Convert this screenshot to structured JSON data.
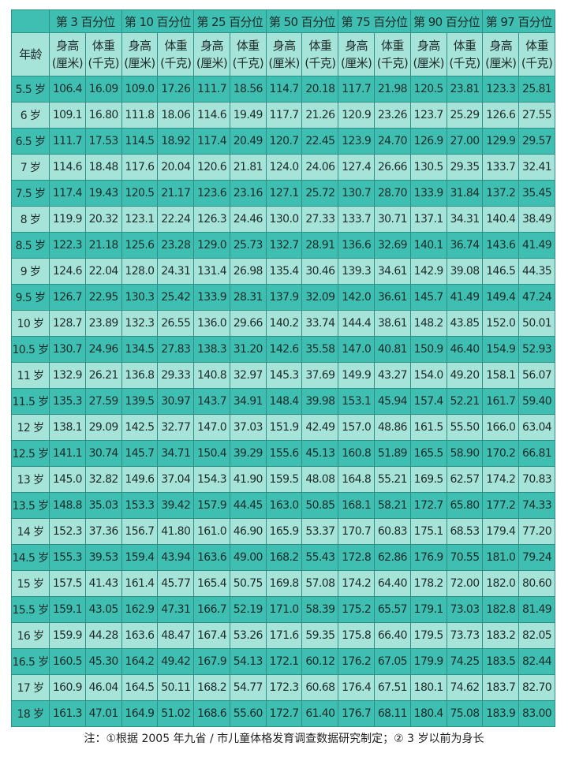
{
  "header": {
    "age_label": "年龄",
    "percentiles": [
      "第 3 百分位",
      "第 10 百分位",
      "第 25 百分位",
      "第 50 百分位",
      "第 75 百分位",
      "第 90 百分位",
      "第 97 百分位"
    ],
    "height_label": "身高\n(厘米)",
    "weight_label": "体重\n(千克)"
  },
  "colors": {
    "dark": "#3fbfb2",
    "light": "#a6e3d9"
  },
  "rows": [
    {
      "age": "5.5 岁",
      "v": [
        "106.4",
        "16.09",
        "109.0",
        "17.26",
        "111.7",
        "18.56",
        "114.7",
        "20.18",
        "117.7",
        "21.98",
        "120.5",
        "23.81",
        "123.3",
        "25.81"
      ]
    },
    {
      "age": "6 岁",
      "v": [
        "109.1",
        "16.80",
        "111.8",
        "18.06",
        "114.6",
        "19.49",
        "117.7",
        "21.26",
        "120.9",
        "23.26",
        "123.7",
        "25.29",
        "126.6",
        "27.55"
      ]
    },
    {
      "age": "6.5 岁",
      "v": [
        "111.7",
        "17.53",
        "114.5",
        "18.92",
        "117.4",
        "20.49",
        "120.7",
        "22.45",
        "123.9",
        "24.70",
        "126.9",
        "27.00",
        "129.9",
        "29.57"
      ]
    },
    {
      "age": "7 岁",
      "v": [
        "114.6",
        "18.48",
        "117.6",
        "20.04",
        "120.6",
        "21.81",
        "124.0",
        "24.06",
        "127.4",
        "26.66",
        "130.5",
        "29.35",
        "133.7",
        "32.41"
      ]
    },
    {
      "age": "7.5 岁",
      "v": [
        "117.4",
        "19.43",
        "120.5",
        "21.17",
        "123.6",
        "23.16",
        "127.1",
        "25.72",
        "130.7",
        "28.70",
        "133.9",
        "31.84",
        "137.2",
        "35.45"
      ]
    },
    {
      "age": "8 岁",
      "v": [
        "119.9",
        "20.32",
        "123.1",
        "22.24",
        "126.3",
        "24.46",
        "130.0",
        "27.33",
        "133.7",
        "30.71",
        "137.1",
        "34.31",
        "140.4",
        "38.49"
      ]
    },
    {
      "age": "8.5 岁",
      "v": [
        "122.3",
        "21.18",
        "125.6",
        "23.28",
        "129.0",
        "25.73",
        "132.7",
        "28.91",
        "136.6",
        "32.69",
        "140.1",
        "36.74",
        "143.6",
        "41.49"
      ]
    },
    {
      "age": "9 岁",
      "v": [
        "124.6",
        "22.04",
        "128.0",
        "24.31",
        "131.4",
        "26.98",
        "135.4",
        "30.46",
        "139.3",
        "34.61",
        "142.9",
        "39.08",
        "146.5",
        "44.35"
      ]
    },
    {
      "age": "9.5 岁",
      "v": [
        "126.7",
        "22.95",
        "130.3",
        "25.42",
        "133.9",
        "28.31",
        "137.9",
        "32.09",
        "142.0",
        "36.61",
        "145.7",
        "41.49",
        "149.4",
        "47.24"
      ]
    },
    {
      "age": "10 岁",
      "v": [
        "128.7",
        "23.89",
        "132.3",
        "26.55",
        "136.0",
        "29.66",
        "140.2",
        "33.74",
        "144.4",
        "38.61",
        "148.2",
        "43.85",
        "152.0",
        "50.01"
      ]
    },
    {
      "age": "10.5 岁",
      "v": [
        "130.7",
        "24.96",
        "134.5",
        "27.83",
        "138.3",
        "31.20",
        "142.6",
        "35.58",
        "147.0",
        "40.81",
        "150.9",
        "46.40",
        "154.9",
        "52.93"
      ]
    },
    {
      "age": "11 岁",
      "v": [
        "132.9",
        "26.21",
        "136.8",
        "29.33",
        "140.8",
        "32.97",
        "145.3",
        "37.69",
        "149.9",
        "43.27",
        "154.0",
        "49.20",
        "158.1",
        "56.07"
      ]
    },
    {
      "age": "11.5 岁",
      "v": [
        "135.3",
        "27.59",
        "139.5",
        "30.97",
        "143.7",
        "34.91",
        "148.4",
        "39.98",
        "153.1",
        "45.94",
        "157.4",
        "52.21",
        "161.7",
        "59.40"
      ]
    },
    {
      "age": "12 岁",
      "v": [
        "138.1",
        "29.09",
        "142.5",
        "32.77",
        "147.0",
        "37.03",
        "151.9",
        "42.49",
        "157.0",
        "48.86",
        "161.5",
        "55.50",
        "166.0",
        "63.04"
      ]
    },
    {
      "age": "12.5 岁",
      "v": [
        "141.1",
        "30.74",
        "145.7",
        "34.71",
        "150.4",
        "39.29",
        "155.6",
        "45.13",
        "160.8",
        "51.89",
        "165.5",
        "58.90",
        "170.2",
        "66.81"
      ]
    },
    {
      "age": "13 岁",
      "v": [
        "145.0",
        "32.82",
        "149.6",
        "37.04",
        "154.3",
        "41.90",
        "159.5",
        "48.08",
        "164.8",
        "55.21",
        "169.5",
        "62.57",
        "174.2",
        "70.83"
      ]
    },
    {
      "age": "13.5 岁",
      "v": [
        "148.8",
        "35.03",
        "153.3",
        "39.42",
        "157.9",
        "44.45",
        "163.0",
        "50.85",
        "168.1",
        "58.21",
        "172.7",
        "65.80",
        "177.2",
        "74.33"
      ]
    },
    {
      "age": "14 岁",
      "v": [
        "152.3",
        "37.36",
        "156.7",
        "41.80",
        "161.0",
        "46.90",
        "165.9",
        "53.37",
        "170.7",
        "60.83",
        "175.1",
        "68.53",
        "179.4",
        "77.20"
      ]
    },
    {
      "age": "14.5 岁",
      "v": [
        "155.3",
        "39.53",
        "159.4",
        "43.94",
        "163.6",
        "49.00",
        "168.2",
        "55.43",
        "172.8",
        "62.86",
        "176.9",
        "70.55",
        "181.0",
        "79.24"
      ]
    },
    {
      "age": "15 岁",
      "v": [
        "157.5",
        "41.43",
        "161.4",
        "45.77",
        "165.4",
        "50.75",
        "169.8",
        "57.08",
        "174.2",
        "64.40",
        "178.2",
        "72.00",
        "182.0",
        "80.60"
      ]
    },
    {
      "age": "15.5 岁",
      "v": [
        "159.1",
        "43.05",
        "162.9",
        "47.31",
        "166.7",
        "52.19",
        "171.0",
        "58.39",
        "175.2",
        "65.57",
        "179.1",
        "73.03",
        "182.8",
        "81.49"
      ]
    },
    {
      "age": "16 岁",
      "v": [
        "159.9",
        "44.28",
        "163.6",
        "48.47",
        "167.4",
        "53.26",
        "171.6",
        "59.35",
        "175.8",
        "66.40",
        "179.5",
        "73.73",
        "183.2",
        "82.05"
      ]
    },
    {
      "age": "16.5 岁",
      "v": [
        "160.5",
        "45.30",
        "164.2",
        "49.42",
        "167.9",
        "54.13",
        "172.1",
        "60.12",
        "176.2",
        "67.05",
        "179.9",
        "74.25",
        "183.5",
        "82.44"
      ]
    },
    {
      "age": "17 岁",
      "v": [
        "160.9",
        "46.04",
        "164.5",
        "50.11",
        "168.2",
        "54.77",
        "172.3",
        "60.68",
        "176.4",
        "67.51",
        "180.1",
        "74.62",
        "183.7",
        "82.70"
      ]
    },
    {
      "age": "18 岁",
      "v": [
        "161.3",
        "47.01",
        "164.9",
        "51.02",
        "168.6",
        "55.60",
        "172.7",
        "61.40",
        "176.7",
        "68.11",
        "180.4",
        "75.08",
        "183.9",
        "83.00"
      ]
    }
  ],
  "note": "注：①根据 2005 年九省 / 市儿童体格发育调查数据研究制定；② 3 岁以前为身长"
}
